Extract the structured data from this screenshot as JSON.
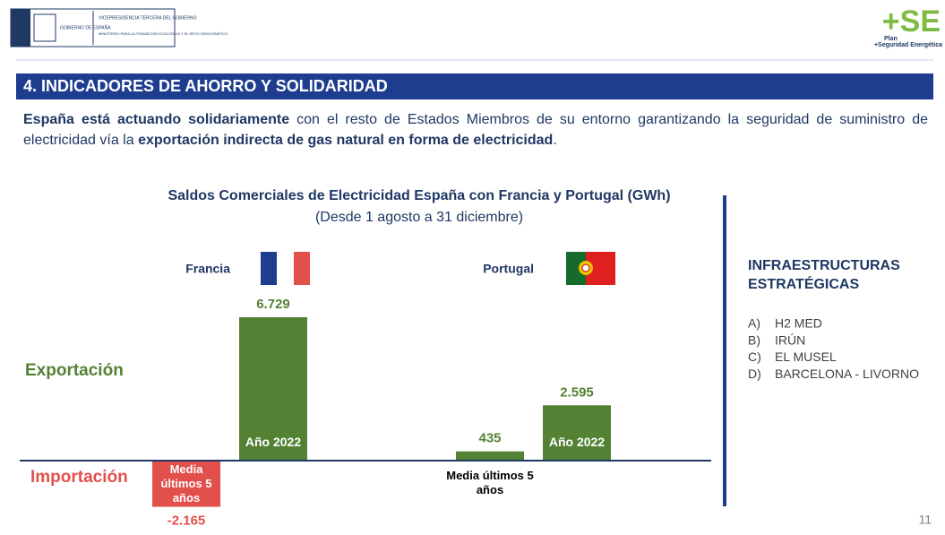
{
  "header": {
    "gov_name": "GOBIERNO DE ESPAÑA",
    "vice": "VICEPRESIDENCIA TERCERA DEL GOBIERNO",
    "ministry": "MINISTERIO PARA LA TRANSICIÓN ECOLÓGICA Y EL RETO DEMOGRÁFICO",
    "logo": "+SE",
    "logo_plan": "Plan",
    "logo_sub": "+Seguridad Energética"
  },
  "section_title": "4. INDICADORES DE AHORRO Y SOLIDARIDAD",
  "intro": [
    {
      "text": "España está actuando solidariamente",
      "bold": true
    },
    {
      "text": " con el resto de Estados Miembros de su entorno garantizando la seguridad de suministro de electricidad vía la ",
      "bold": false
    },
    {
      "text": "exportación indirecta de gas natural en forma de electricidad",
      "bold": true
    },
    {
      "text": ".",
      "bold": false
    }
  ],
  "chart_data": {
    "type": "bar",
    "title": "Saldos Comerciales de Electricidad España con Francia y Portugal (GWh)",
    "subtitle": "(Desde 1 agosto a 31 diciembre)",
    "positive_label": "Exportación",
    "negative_label": "Importación",
    "categories": [
      "Francia",
      "Portugal"
    ],
    "series": [
      {
        "name": "Media últimos 5 años",
        "colors": [
          "#e2504c",
          "#548235"
        ],
        "values": [
          -2165,
          435
        ],
        "value_labels": [
          "-2.165",
          "435"
        ]
      },
      {
        "name": "Año 2022",
        "colors": [
          "#548235",
          "#548235"
        ],
        "values": [
          6729,
          2595
        ],
        "value_labels": [
          "6.729",
          "2.595"
        ]
      }
    ],
    "ylim": [
      -2500,
      7000
    ]
  },
  "side_panel": {
    "title": "INFRAESTRUCTURAS ESTRATÉGICAS",
    "items": [
      {
        "letter": "A)",
        "text": "H2 MED"
      },
      {
        "letter": "B)",
        "text": "IRÚN"
      },
      {
        "letter": "C)",
        "text": "EL MUSEL"
      },
      {
        "letter": "D)",
        "text": "BARCELONA - LIVORNO"
      }
    ]
  },
  "page_number": "11"
}
